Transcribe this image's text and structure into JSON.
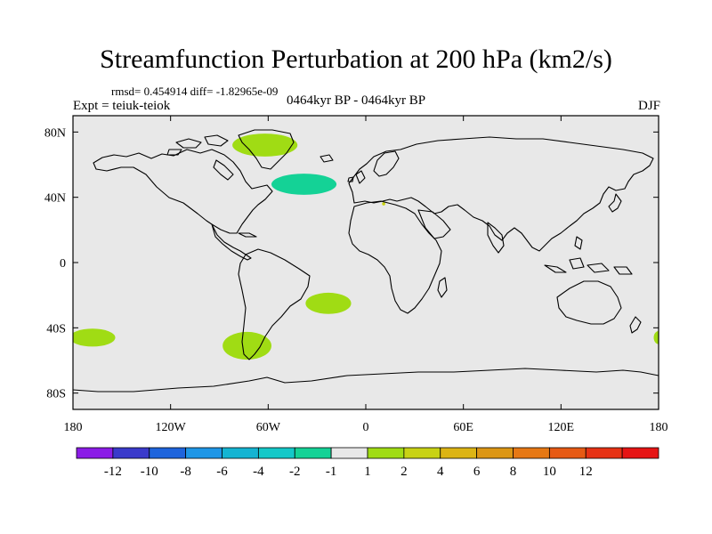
{
  "header": {
    "title": "Streamfunction Perturbation at 200 hPa (km2/s)",
    "stats": "rmsd= 0.454914 diff= -1.82965e-09",
    "experiment": "Expt = teiuk-teiok",
    "period": "0464kyr BP - 0464kyr BP",
    "season": "DJF"
  },
  "chart_data": {
    "type": "heatmap",
    "title": "Streamfunction Perturbation at 200 hPa (km2/s)",
    "units": "km2/s",
    "projection": "cylindrical equidistant",
    "xlim": [
      -180,
      180
    ],
    "ylim": [
      -90,
      90
    ],
    "x_ticks": [
      {
        "value": -180,
        "label": "180"
      },
      {
        "value": -120,
        "label": "120W"
      },
      {
        "value": -60,
        "label": "60W"
      },
      {
        "value": 0,
        "label": "0"
      },
      {
        "value": 60,
        "label": "60E"
      },
      {
        "value": 120,
        "label": "120E"
      },
      {
        "value": 180,
        "label": "180"
      }
    ],
    "y_ticks": [
      {
        "value": 80,
        "label": "80N"
      },
      {
        "value": 40,
        "label": "40N"
      },
      {
        "value": 0,
        "label": "0"
      },
      {
        "value": -40,
        "label": "40S"
      },
      {
        "value": -80,
        "label": "80S"
      }
    ],
    "background_color": "#e8e8e8",
    "colorbar": {
      "colors": [
        "#8b1ce6",
        "#3a3acb",
        "#1e64dc",
        "#1e96e6",
        "#14b4d2",
        "#14c8c8",
        "#14d296",
        "#e8e8e8",
        "#a0dc14",
        "#c8d214",
        "#dcb414",
        "#dc9614",
        "#e67814",
        "#e65a14",
        "#e63214",
        "#e61414"
      ],
      "labels": [
        "-12",
        "-10",
        "-8",
        "-6",
        "-4",
        "-2",
        "-1",
        "1",
        "2",
        "4",
        "6",
        "8",
        "10",
        "12"
      ]
    },
    "anomalies": [
      {
        "name": "greenland-positive",
        "lon": -62,
        "lat": 72,
        "lon_width": 40,
        "lat_height": 14,
        "color": "#a0dc14"
      },
      {
        "name": "north-atlantic-negative",
        "lon": -38,
        "lat": 48,
        "lon_width": 40,
        "lat_height": 13,
        "color": "#14d296"
      },
      {
        "name": "mediterranean-speck",
        "lon": 11,
        "lat": 36,
        "lon_width": 2,
        "lat_height": 2,
        "color": "#c8d214"
      },
      {
        "name": "south-atlantic-positive",
        "lon": -23,
        "lat": -25,
        "lon_width": 28,
        "lat_height": 13,
        "color": "#a0dc14"
      },
      {
        "name": "south-america-positive",
        "lon": -73,
        "lat": -51,
        "lon_width": 30,
        "lat_height": 17,
        "color": "#a0dc14"
      },
      {
        "name": "south-pacific-positive-west",
        "lon": -168,
        "lat": -46,
        "lon_width": 28,
        "lat_height": 11,
        "color": "#a0dc14"
      },
      {
        "name": "south-pacific-positive-east",
        "lon": 180,
        "lat": -46,
        "lon_width": 6,
        "lat_height": 8,
        "color": "#a0dc14"
      }
    ]
  }
}
